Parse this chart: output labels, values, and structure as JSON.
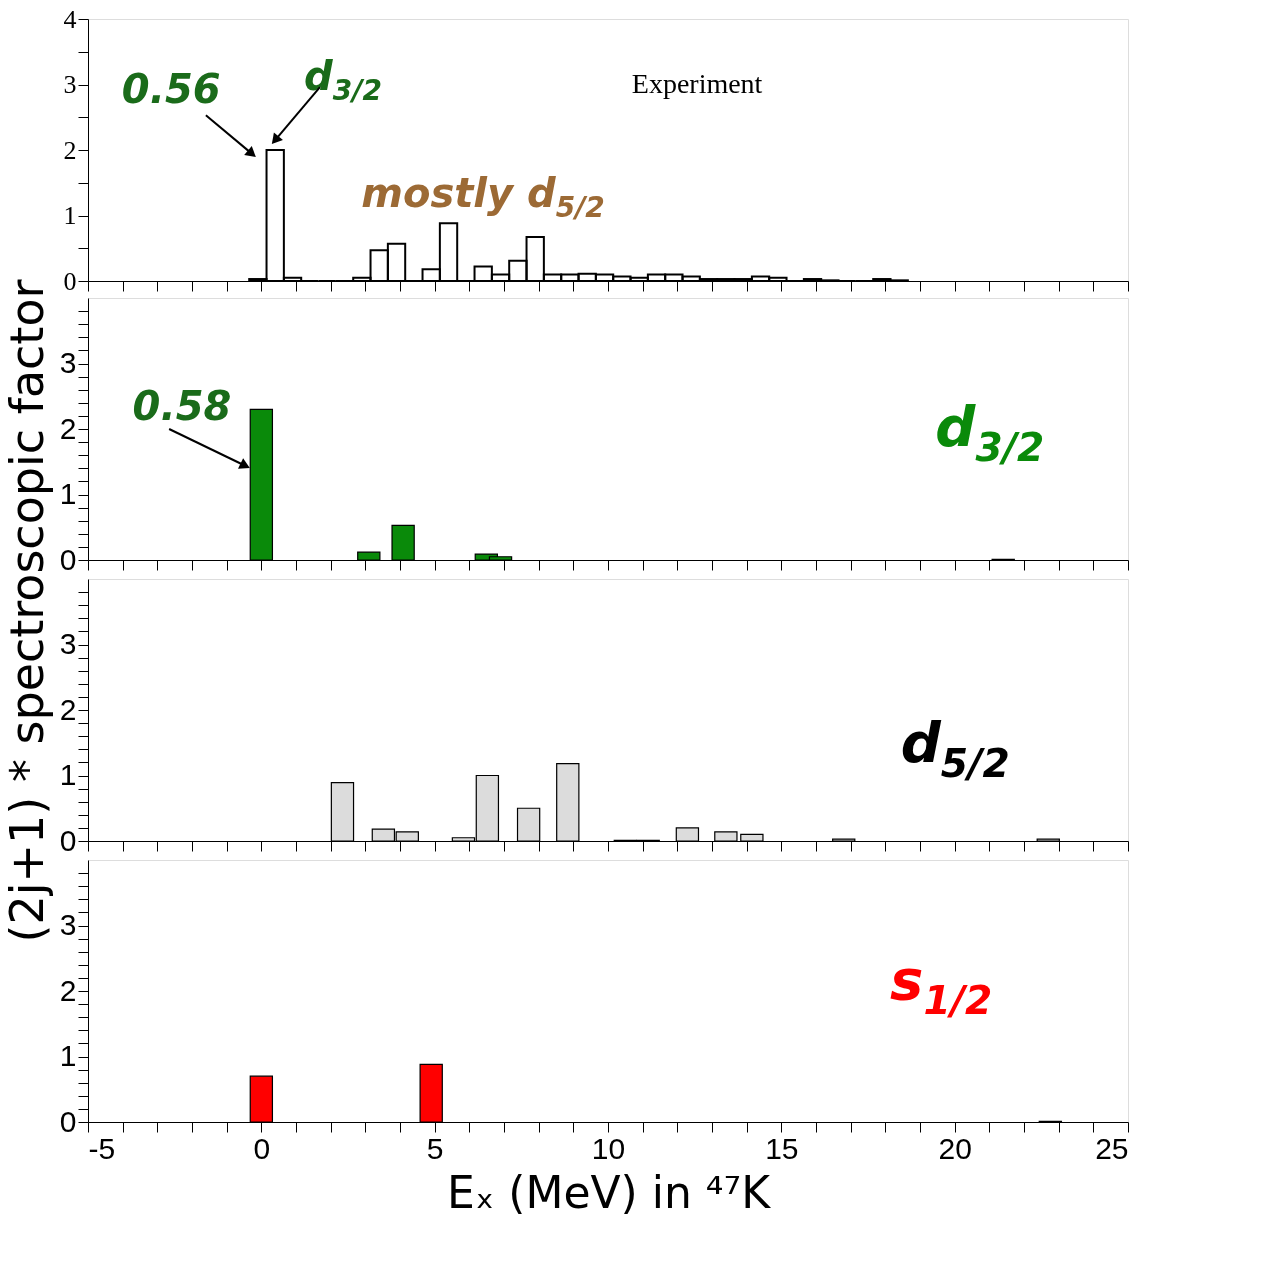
{
  "chart_data": [
    {
      "type": "histogram",
      "ylabel": "(2j+1) * spectroscopic factor",
      "bins": [
        -0.35,
        0.15,
        0.65,
        1.15,
        1.65,
        2.15,
        2.65,
        3.15,
        3.65,
        4.15,
        4.65,
        5.15,
        5.65,
        6.15,
        6.65,
        7.15,
        7.65,
        8.15,
        8.65,
        9.15,
        9.65,
        10.15,
        10.65,
        11.15,
        11.65,
        12.15,
        12.65,
        13.15,
        13.65,
        14.15,
        14.65,
        15.15,
        15.65,
        16.15,
        16.65,
        17.15,
        17.65,
        18.15,
        18.65
      ],
      "values": [
        0.03,
        2.0,
        0.05,
        0,
        0,
        0,
        0.05,
        0.47,
        0.57,
        0,
        0.18,
        0.88,
        0,
        0.22,
        0.1,
        0.31,
        0.67,
        0.1,
        0.1,
        0.11,
        0.1,
        0.07,
        0.05,
        0.1,
        0.1,
        0.07,
        0.03,
        0.03,
        0.03,
        0.07,
        0.05,
        0,
        0.03,
        0.01,
        0,
        0,
        0.03,
        0.01
      ],
      "xlim": [
        -5,
        25
      ],
      "ylim": [
        0,
        4
      ],
      "xticks": [
        -5,
        {
          "value": -4,
          "label": null
        },
        {
          "value": -3,
          "label": null
        },
        {
          "value": -2,
          "label": null
        },
        {
          "value": -1,
          "label": null
        },
        0,
        {
          "value": 1,
          "label": null
        },
        {
          "value": 2,
          "label": null
        },
        {
          "value": 3,
          "label": null
        },
        {
          "value": 4,
          "label": null
        },
        5,
        {
          "value": 6,
          "label": null
        },
        {
          "value": 7,
          "label": null
        },
        {
          "value": 8,
          "label": null
        },
        {
          "value": 9,
          "label": null
        },
        10,
        {
          "value": 11,
          "label": null
        },
        {
          "value": 12,
          "label": null
        },
        {
          "value": 13,
          "label": null
        },
        {
          "value": 14,
          "label": null
        },
        15,
        {
          "value": 16,
          "label": null
        },
        {
          "value": 17,
          "label": null
        },
        {
          "value": 18,
          "label": null
        },
        {
          "value": 19,
          "label": null
        },
        20,
        {
          "value": 21,
          "label": null
        },
        {
          "value": 22,
          "label": null
        },
        {
          "value": 23,
          "label": null
        },
        {
          "value": 24,
          "label": null
        },
        25
      ],
      "yticks": [
        0,
        {
          "value": 0.5,
          "label": null
        },
        1,
        {
          "value": 1.5,
          "label": null
        },
        2,
        {
          "value": 2.5,
          "label": null
        },
        3,
        {
          "value": 3.5,
          "label": null
        },
        4
      ],
      "tick_labels": "y",
      "annotations": [
        "0.56",
        "d$_{3/2}$",
        "Experiment",
        "mostly d$_{5/2}$"
      ]
    },
    {
      "type": "bar",
      "x": [
        0,
        3.1,
        4.09,
        6.49,
        6.9,
        21.4
      ],
      "series": [
        {
          "name": "d$_{3/2}$",
          "color": "#0a8a0a",
          "values": [
            2.3,
            0.12,
            0.53,
            0.09,
            0.05,
            0.01
          ]
        }
      ],
      "xlim": [
        -5,
        25
      ],
      "ylim": [
        0,
        4
      ],
      "xticks": [
        -5,
        {
          "value": -4,
          "label": null
        },
        {
          "value": -3,
          "label": null
        },
        {
          "value": -2,
          "label": null
        },
        {
          "value": -1,
          "label": null
        },
        0,
        {
          "value": 1,
          "label": null
        },
        {
          "value": 2,
          "label": null
        },
        {
          "value": 3,
          "label": null
        },
        {
          "value": 4,
          "label": null
        },
        5,
        {
          "value": 6,
          "label": null
        },
        {
          "value": 7,
          "label": null
        },
        {
          "value": 8,
          "label": null
        },
        {
          "value": 9,
          "label": null
        },
        10,
        {
          "value": 11,
          "label": null
        },
        {
          "value": 12,
          "label": null
        },
        {
          "value": 13,
          "label": null
        },
        {
          "value": 14,
          "label": null
        },
        15,
        {
          "value": 16,
          "label": null
        },
        {
          "value": 17,
          "label": null
        },
        {
          "value": 18,
          "label": null
        },
        {
          "value": 19,
          "label": null
        },
        20,
        {
          "value": 21,
          "label": null
        },
        {
          "value": 22,
          "label": null
        },
        {
          "value": 23,
          "label": null
        },
        {
          "value": 24,
          "label": null
        },
        25
      ],
      "yticks": [
        0,
        {
          "value": 0.2,
          "label": null
        },
        {
          "value": 0.4,
          "label": null
        },
        {
          "value": 0.6,
          "label": null
        },
        {
          "value": 0.8,
          "label": null
        },
        1,
        {
          "value": 1.2,
          "label": null
        },
        {
          "value": 1.4,
          "label": null
        },
        {
          "value": 1.6,
          "label": null
        },
        {
          "value": 1.8,
          "label": null
        },
        2,
        {
          "value": 2.2,
          "label": null
        },
        {
          "value": 2.4,
          "label": null
        },
        {
          "value": 2.6,
          "label": null
        },
        {
          "value": 2.8,
          "label": null
        },
        3,
        {
          "value": 3.2,
          "label": null
        },
        {
          "value": 3.4,
          "label": null
        },
        {
          "value": 3.6,
          "label": null
        },
        {
          "value": 3.8,
          "label": null
        }
      ],
      "tick_labels": "y",
      "annotations": [
        "0.58"
      ]
    },
    {
      "type": "bar",
      "x": [
        2.34,
        3.52,
        4.21,
        5.83,
        6.52,
        7.71,
        8.84,
        10.5,
        11.16,
        12.29,
        13.4,
        14.15,
        16.8,
        22.7
      ],
      "series": [
        {
          "name": "d$_{5/2}$",
          "color": "#dcdcdc",
          "values": [
            0.89,
            0.18,
            0.14,
            0.05,
            1.0,
            0.5,
            1.18,
            0.01,
            0.01,
            0.2,
            0.14,
            0.1,
            0.03,
            0.03
          ]
        }
      ],
      "xlim": [
        -5,
        25
      ],
      "ylim": [
        0,
        4
      ],
      "xticks": [
        -5,
        {
          "value": -4,
          "label": null
        },
        {
          "value": -3,
          "label": null
        },
        {
          "value": -2,
          "label": null
        },
        {
          "value": -1,
          "label": null
        },
        0,
        {
          "value": 1,
          "label": null
        },
        {
          "value": 2,
          "label": null
        },
        {
          "value": 3,
          "label": null
        },
        {
          "value": 4,
          "label": null
        },
        5,
        {
          "value": 6,
          "label": null
        },
        {
          "value": 7,
          "label": null
        },
        {
          "value": 8,
          "label": null
        },
        {
          "value": 9,
          "label": null
        },
        10,
        {
          "value": 11,
          "label": null
        },
        {
          "value": 12,
          "label": null
        },
        {
          "value": 13,
          "label": null
        },
        {
          "value": 14,
          "label": null
        },
        15,
        {
          "value": 16,
          "label": null
        },
        {
          "value": 17,
          "label": null
        },
        {
          "value": 18,
          "label": null
        },
        {
          "value": 19,
          "label": null
        },
        20,
        {
          "value": 21,
          "label": null
        },
        {
          "value": 22,
          "label": null
        },
        {
          "value": 23,
          "label": null
        },
        {
          "value": 24,
          "label": null
        },
        25
      ],
      "yticks": [
        0,
        {
          "value": 0.2,
          "label": null
        },
        {
          "value": 0.4,
          "label": null
        },
        {
          "value": 0.6,
          "label": null
        },
        {
          "value": 0.8,
          "label": null
        },
        1,
        {
          "value": 1.2,
          "label": null
        },
        {
          "value": 1.4,
          "label": null
        },
        {
          "value": 1.6,
          "label": null
        },
        {
          "value": 1.8,
          "label": null
        },
        2,
        {
          "value": 2.2,
          "label": null
        },
        {
          "value": 2.4,
          "label": null
        },
        {
          "value": 2.6,
          "label": null
        },
        {
          "value": 2.8,
          "label": null
        },
        3,
        {
          "value": 3.2,
          "label": null
        },
        {
          "value": 3.4,
          "label": null
        },
        {
          "value": 3.6,
          "label": null
        },
        {
          "value": 3.8,
          "label": null
        }
      ],
      "tick_labels": "y"
    },
    {
      "type": "bar",
      "x": [
        0,
        4.9,
        22.76
      ],
      "xlabel": "Eₓ (MeV) in ⁴⁷K",
      "series": [
        {
          "name": "s$_{1/2}$",
          "color": "#ff0000",
          "values": [
            0.7,
            0.88,
            0.01
          ]
        }
      ],
      "xlim": [
        -5,
        25
      ],
      "ylim": [
        0,
        4
      ],
      "xticks": [
        -5,
        {
          "value": -4,
          "label": null
        },
        {
          "value": -3,
          "label": null
        },
        {
          "value": -2,
          "label": null
        },
        {
          "value": -1,
          "label": null
        },
        0,
        {
          "value": 1,
          "label": null
        },
        {
          "value": 2,
          "label": null
        },
        {
          "value": 3,
          "label": null
        },
        {
          "value": 4,
          "label": null
        },
        5,
        {
          "value": 6,
          "label": null
        },
        {
          "value": 7,
          "label": null
        },
        {
          "value": 8,
          "label": null
        },
        {
          "value": 9,
          "label": null
        },
        10,
        {
          "value": 11,
          "label": null
        },
        {
          "value": 12,
          "label": null
        },
        {
          "value": 13,
          "label": null
        },
        {
          "value": 14,
          "label": null
        },
        15,
        {
          "value": 16,
          "label": null
        },
        {
          "value": 17,
          "label": null
        },
        {
          "value": 18,
          "label": null
        },
        {
          "value": 19,
          "label": null
        },
        20,
        {
          "value": 21,
          "label": null
        },
        {
          "value": 22,
          "label": null
        },
        {
          "value": 23,
          "label": null
        },
        {
          "value": 24,
          "label": null
        },
        25
      ],
      "yticks": [
        0,
        {
          "value": 0.2,
          "label": null
        },
        {
          "value": 0.4,
          "label": null
        },
        {
          "value": 0.6,
          "label": null
        },
        {
          "value": 0.8,
          "label": null
        },
        1,
        {
          "value": 1.2,
          "label": null
        },
        {
          "value": 1.4,
          "label": null
        },
        {
          "value": 1.6,
          "label": null
        },
        {
          "value": 1.8,
          "label": null
        },
        2,
        {
          "value": 2.2,
          "label": null
        },
        {
          "value": 2.4,
          "label": null
        },
        {
          "value": 2.6,
          "label": null
        },
        {
          "value": 2.8,
          "label": null
        },
        3,
        {
          "value": 3.2,
          "label": null
        },
        {
          "value": 3.4,
          "label": null
        },
        {
          "value": 3.6,
          "label": null
        },
        {
          "value": 3.8,
          "label": null
        }
      ]
    }
  ]
}
